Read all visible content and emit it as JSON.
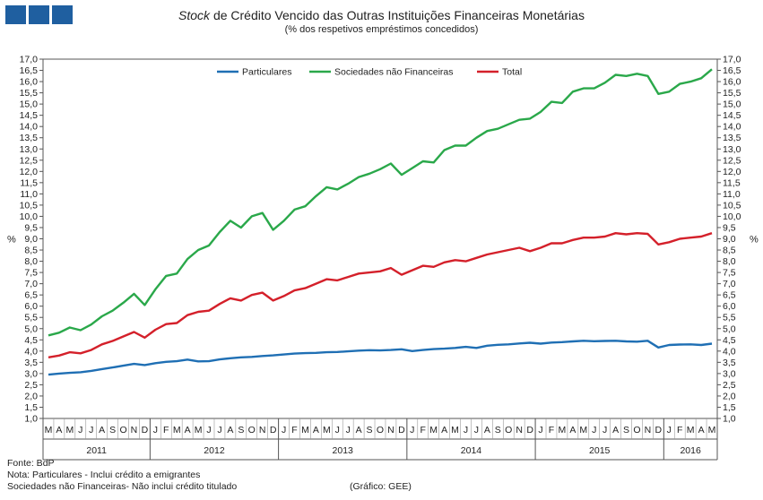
{
  "header": {
    "title_italic": "Stock",
    "title_rest": " de Crédito Vencido das Outras Instituições Financeiras Monetárias",
    "subtitle": "(% dos respetivos empréstimos  concedidos)"
  },
  "footer": {
    "source": "Fonte: BdP",
    "note1": "Nota: Particulares - Inclui crédito a emigrantes",
    "note2": "Sociedades não Financeiras- Não inclui crédito titulado",
    "credit": "(Gráfico: GEE)"
  },
  "colors": {
    "Particulares": "#1f6fb4",
    "Sociedades não Financeiras": "#2aa84a",
    "Total": "#d4202a",
    "logo": "#1f5fa0"
  },
  "chart_data": {
    "type": "line",
    "title": "Stock de Crédito Vencido das Outras Instituições Financeiras Monetárias",
    "subtitle": "(% dos respetivos empréstimos  concedidos)",
    "ylabel": "%",
    "ylim": [
      1.0,
      17.0
    ],
    "ytick_step": 0.5,
    "yticks": [
      "1,0",
      "1,5",
      "2,0",
      "2,5",
      "3,0",
      "3,5",
      "4,0",
      "4,5",
      "5,0",
      "5,5",
      "6,0",
      "6,5",
      "7,0",
      "7,5",
      "8,0",
      "8,5",
      "9,0",
      "9,5",
      "10,0",
      "10,5",
      "11,0",
      "11,5",
      "12,0",
      "12,5",
      "13,0",
      "13,5",
      "14,0",
      "14,5",
      "15,0",
      "15,5",
      "16,0",
      "16,5",
      "17,0"
    ],
    "legend_position": "top-center",
    "categories": [
      "M",
      "A",
      "M",
      "J",
      "J",
      "A",
      "S",
      "O",
      "N",
      "D",
      "J",
      "F",
      "M",
      "A",
      "M",
      "J",
      "J",
      "A",
      "S",
      "O",
      "N",
      "D",
      "J",
      "F",
      "M",
      "A",
      "M",
      "J",
      "J",
      "A",
      "S",
      "O",
      "N",
      "D",
      "J",
      "F",
      "M",
      "A",
      "M",
      "J",
      "J",
      "A",
      "S",
      "O",
      "N",
      "D",
      "J",
      "F",
      "M",
      "A",
      "M",
      "J",
      "J",
      "A",
      "S",
      "O",
      "N",
      "D",
      "J",
      "F",
      "M",
      "A",
      "M"
    ],
    "years": [
      {
        "label": "2011",
        "start": 0,
        "count": 10
      },
      {
        "label": "2012",
        "start": 10,
        "count": 12
      },
      {
        "label": "2013",
        "start": 22,
        "count": 12
      },
      {
        "label": "2014",
        "start": 34,
        "count": 12
      },
      {
        "label": "2015",
        "start": 46,
        "count": 12
      },
      {
        "label": "2016",
        "start": 58,
        "count": 5
      }
    ],
    "series": [
      {
        "name": "Particulares",
        "values": [
          2.95,
          3.0,
          3.03,
          3.06,
          3.12,
          3.2,
          3.27,
          3.35,
          3.43,
          3.38,
          3.46,
          3.52,
          3.55,
          3.62,
          3.54,
          3.55,
          3.63,
          3.68,
          3.72,
          3.74,
          3.78,
          3.81,
          3.85,
          3.89,
          3.91,
          3.92,
          3.95,
          3.96,
          3.99,
          4.02,
          4.04,
          4.03,
          4.05,
          4.08,
          4.0,
          4.05,
          4.09,
          4.11,
          4.14,
          4.19,
          4.14,
          4.24,
          4.28,
          4.3,
          4.34,
          4.37,
          4.33,
          4.38,
          4.4,
          4.43,
          4.46,
          4.44,
          4.45,
          4.46,
          4.43,
          4.42,
          4.46,
          4.16,
          4.27,
          4.29,
          4.3,
          4.27,
          4.33
        ]
      },
      {
        "name": "Sociedades não Financeiras",
        "values": [
          4.7,
          4.82,
          5.05,
          4.93,
          5.18,
          5.55,
          5.8,
          6.15,
          6.55,
          6.05,
          6.75,
          7.35,
          7.45,
          8.1,
          8.5,
          8.7,
          9.3,
          9.8,
          9.5,
          10.0,
          10.15,
          9.4,
          9.8,
          10.3,
          10.45,
          10.9,
          11.3,
          11.2,
          11.45,
          11.75,
          11.9,
          12.1,
          12.35,
          11.85,
          12.15,
          12.45,
          12.4,
          12.95,
          13.15,
          13.15,
          13.5,
          13.8,
          13.9,
          14.1,
          14.3,
          14.35,
          14.65,
          15.1,
          15.05,
          15.55,
          15.7,
          15.7,
          15.95,
          16.3,
          16.25,
          16.35,
          16.25,
          15.45,
          15.55,
          15.9,
          16.0,
          16.15,
          16.55
        ]
      },
      {
        "name": "Total",
        "values": [
          3.72,
          3.8,
          3.95,
          3.9,
          4.05,
          4.3,
          4.45,
          4.65,
          4.85,
          4.6,
          4.95,
          5.2,
          5.25,
          5.6,
          5.75,
          5.8,
          6.1,
          6.35,
          6.25,
          6.5,
          6.6,
          6.25,
          6.45,
          6.7,
          6.8,
          7.0,
          7.2,
          7.15,
          7.3,
          7.45,
          7.5,
          7.55,
          7.7,
          7.4,
          7.6,
          7.8,
          7.75,
          7.95,
          8.05,
          8.0,
          8.15,
          8.3,
          8.4,
          8.5,
          8.6,
          8.45,
          8.6,
          8.8,
          8.8,
          8.95,
          9.05,
          9.05,
          9.1,
          9.25,
          9.2,
          9.25,
          9.22,
          8.75,
          8.85,
          9.0,
          9.05,
          9.1,
          9.25
        ]
      }
    ]
  }
}
